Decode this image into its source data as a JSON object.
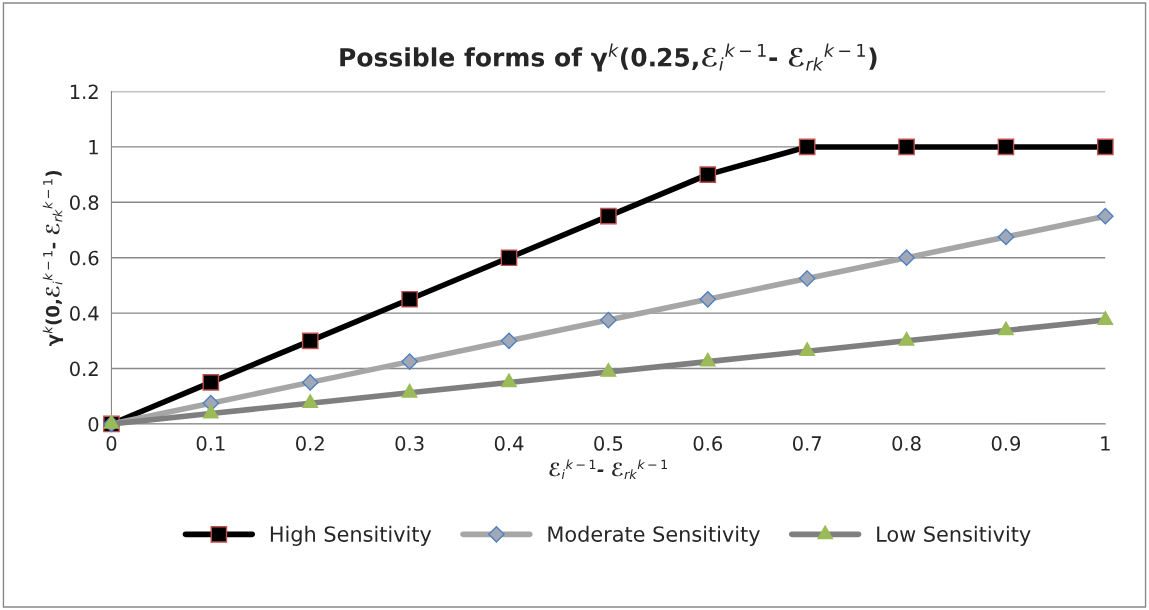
{
  "chart_data": {
    "type": "line",
    "title": "Possible forms of γ$^{k}$(0.25,ℰ$_{i}$$^{k−1}$- ℰ$_{rk}$$^{k−1}$)",
    "xlabel": "ℰ$_{i}$$^{k−1}$- ℰ$_{rk}$$^{k−1}$",
    "ylabel": "γ$^{k}$(0,ℰ$_{i}$$^{k−1}$- ℰ$_{rk}$$^{k−1}$)",
    "x": [
      0,
      0.1,
      0.2,
      0.3,
      0.4,
      0.5,
      0.6,
      0.7,
      0.8,
      0.9,
      1
    ],
    "series": [
      {
        "name": "High Sensitivity",
        "color": "#000000",
        "marker": "square",
        "values": [
          0,
          0.15,
          0.3,
          0.45,
          0.6,
          0.75,
          0.9,
          1,
          1,
          1,
          1
        ]
      },
      {
        "name": "Moderate Sensitivity",
        "color": "#a6a6a6",
        "marker": "diamond",
        "values": [
          0,
          0.075,
          0.15,
          0.225,
          0.3,
          0.375,
          0.45,
          0.525,
          0.6,
          0.675,
          0.75
        ]
      },
      {
        "name": "Low Sensitivity",
        "color": "#7f7f7f",
        "marker": "triangle",
        "values": [
          0,
          0.0375,
          0.075,
          0.1125,
          0.15,
          0.1875,
          0.225,
          0.2625,
          0.3,
          0.3375,
          0.375
        ]
      }
    ],
    "xlim": [
      0,
      1
    ],
    "xticks": [
      0,
      0.1,
      0.2,
      0.3,
      0.4,
      0.5,
      0.6,
      0.7,
      0.8,
      0.9,
      1
    ],
    "ylim": [
      0,
      1.2
    ],
    "yticks": [
      0,
      0.2,
      0.4,
      0.6,
      0.8,
      1,
      1.2
    ],
    "grid": "y",
    "legend": "bottom",
    "line_style": "solid"
  }
}
